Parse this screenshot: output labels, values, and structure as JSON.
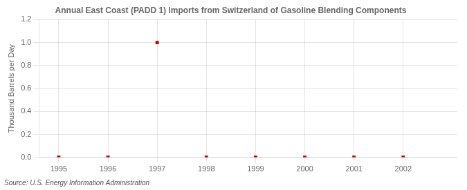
{
  "chart_data": {
    "type": "scatter",
    "title": "Annual East Coast (PADD 1) Imports from Switzerland of Gasoline Blending Components",
    "ylabel": "Thousand Barrels per Day",
    "source": "Source: U.S. Energy Information Administration",
    "x": [
      1995,
      1996,
      1997,
      1998,
      1999,
      2000,
      2001,
      2002
    ],
    "values": [
      0.0,
      0.0,
      1.0,
      0.0,
      0.0,
      0.0,
      0.0,
      0.0
    ],
    "color": "#cc0000",
    "marker": "square",
    "xlim": [
      1994.6,
      2003.1
    ],
    "xticks": [
      1995,
      1996,
      1997,
      1998,
      1999,
      2000,
      2001,
      2002
    ],
    "ylim": [
      0.0,
      1.2
    ],
    "yticks": [
      {
        "value": 0.0,
        "label": "0.0"
      },
      0.2,
      0.4,
      0.6,
      0.8,
      {
        "value": 1.0,
        "label": "1.0"
      },
      1.2
    ],
    "grid": true
  }
}
